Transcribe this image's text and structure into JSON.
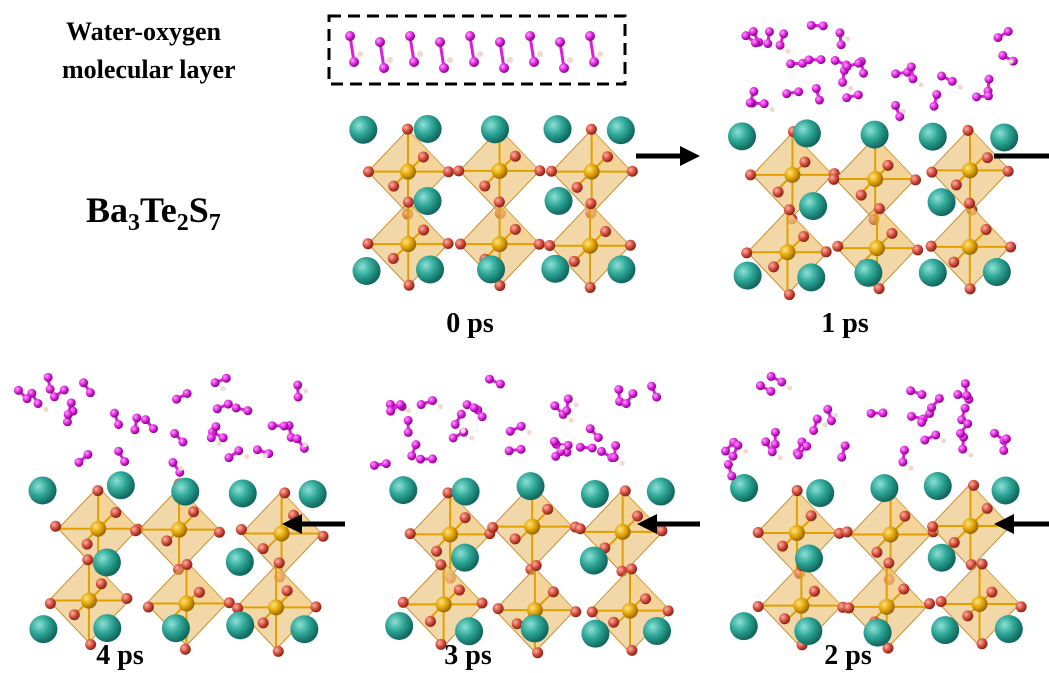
{
  "legend_box": {
    "line1": "Water-oxygen",
    "line2": "molecular layer"
  },
  "formula": {
    "parts": [
      {
        "element": "Ba",
        "sub": "3"
      },
      {
        "element": "Te",
        "sub": "2"
      },
      {
        "element": "S",
        "sub": "7"
      }
    ]
  },
  "snapshots": [
    {
      "label": "0 ps"
    },
    {
      "label": "1 ps"
    },
    {
      "label": "2 ps"
    },
    {
      "label": "3 ps"
    },
    {
      "label": "4 ps"
    }
  ]
}
